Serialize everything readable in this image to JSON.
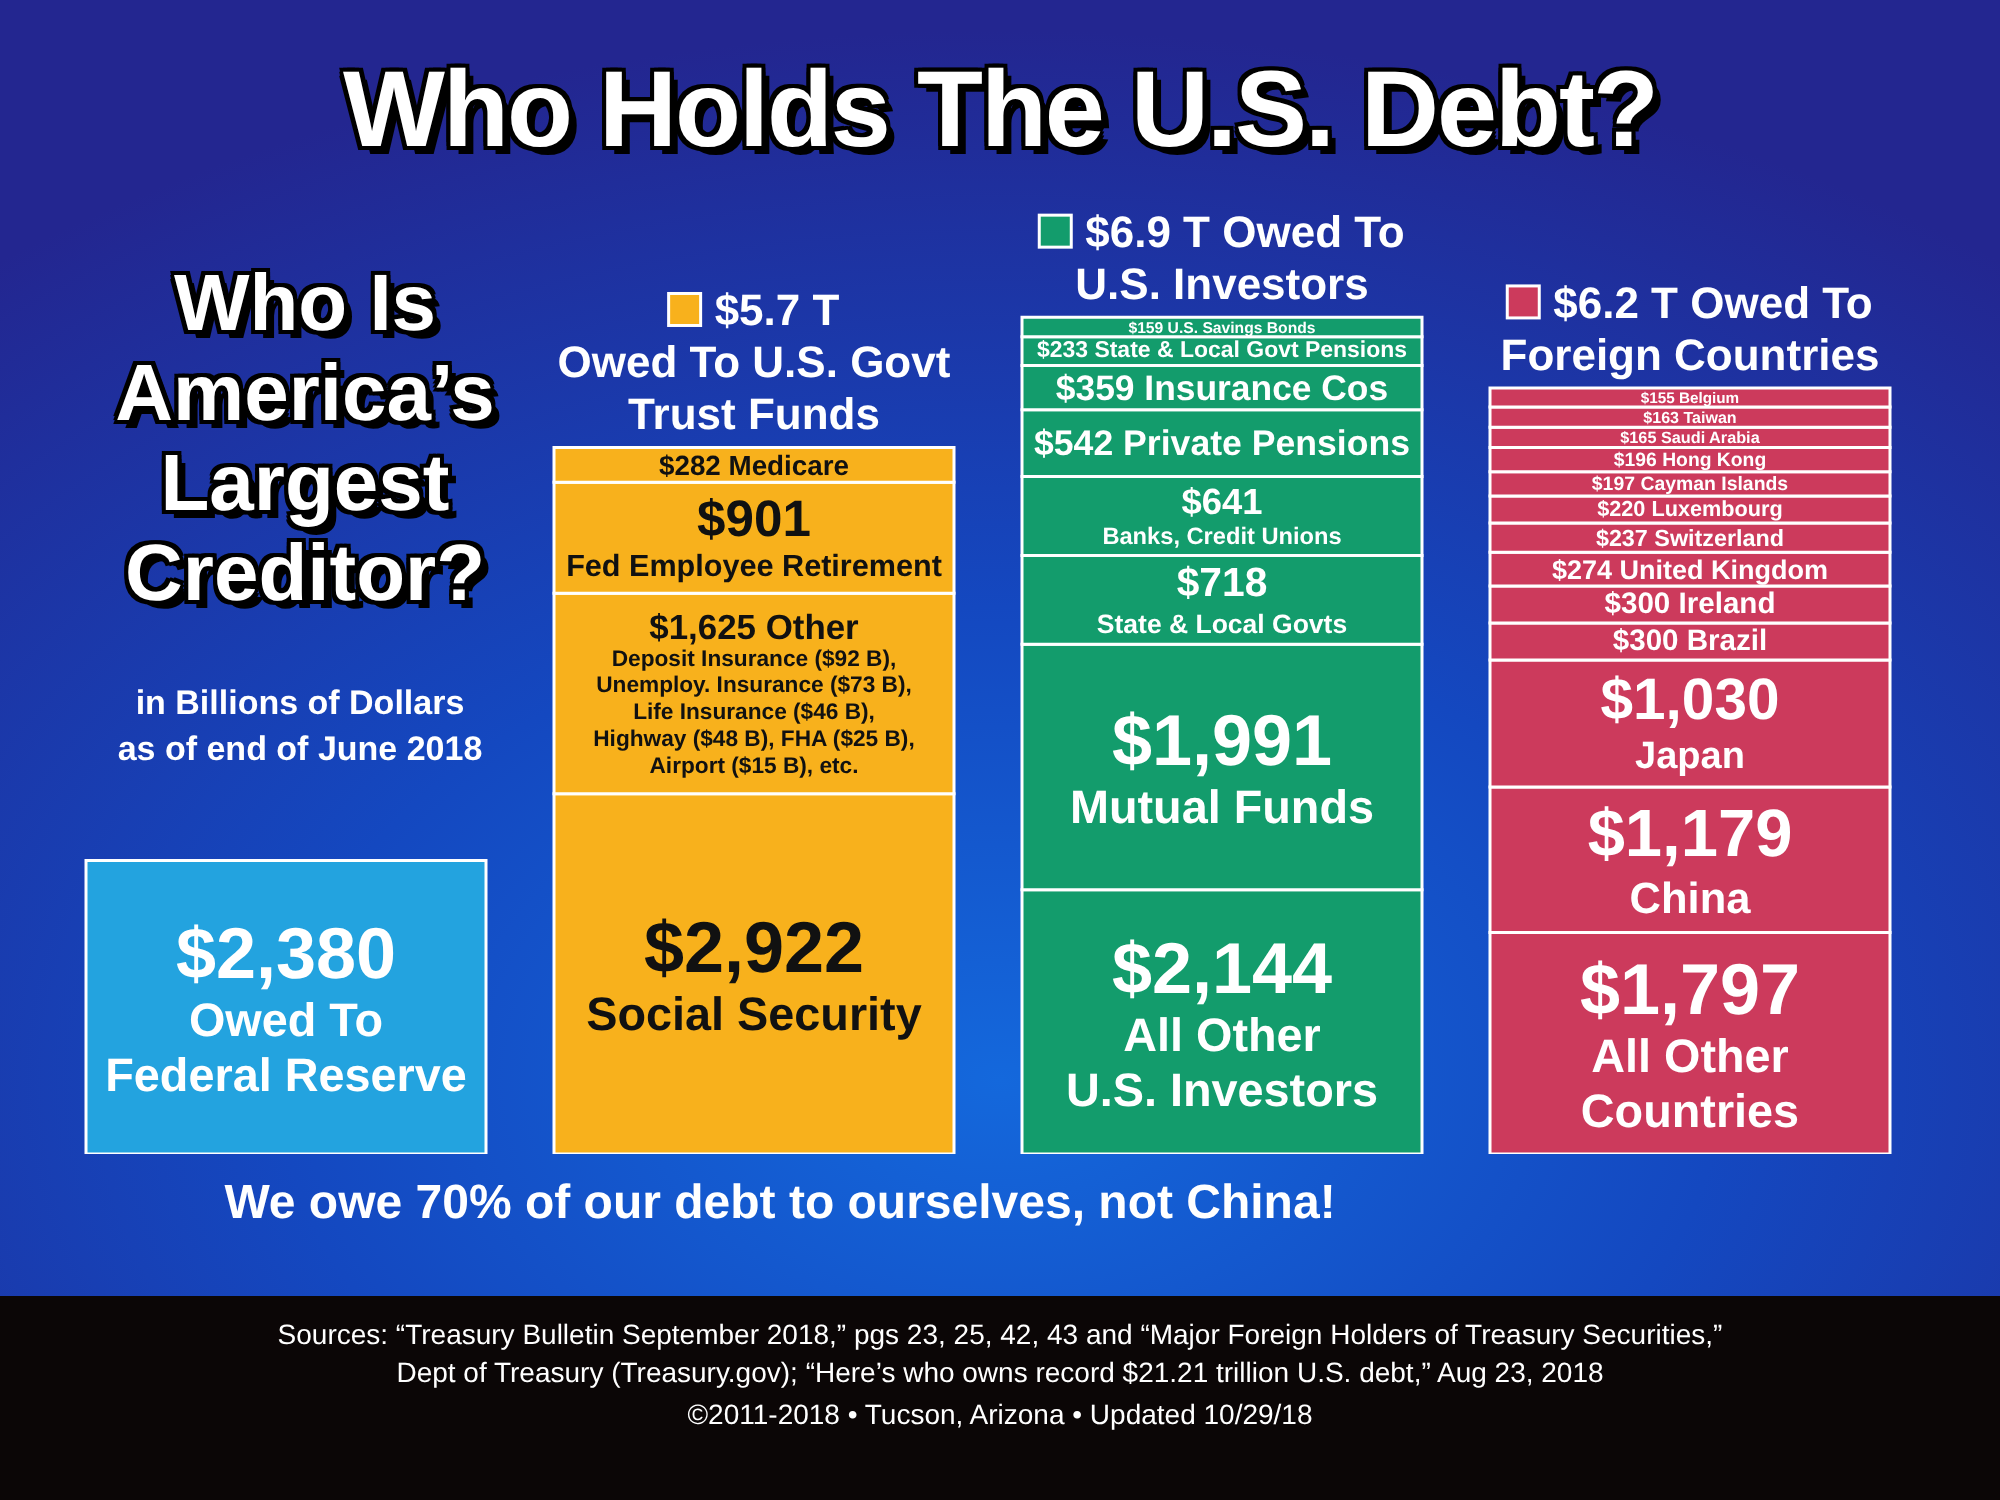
{
  "chart_data": {
    "type": "bar",
    "stacked": true,
    "title": "Who Holds The U.S. Debt?",
    "subtitle": "Who Is\nAmerica’s\nLargest\nCreditor?",
    "categories": [
      null,
      "$5.7 T\nOwed To U.S. Govt\nTrust Funds",
      "$6.9 T Owed To\nU.S. Investors",
      "$6.2 T Owed To\nForeign Countries"
    ],
    "series": [
      {
        "colors": [
          "#23a3df",
          "#f8b11c",
          "#139c6c",
          "#cc3a5c"
        ],
        "values": [
          2380,
          2922,
          2144,
          1797
        ],
        "value_labels": [
          "$2,380\nOwed To\nFederal Reserve",
          "$2,922\nSocial Security",
          "$2,144\nAll Other\nU.S. Investors",
          "$1,797\nAll Other\nCountries"
        ]
      },
      {
        "colors": [
          "#23a3df",
          "#f8b11c",
          "#139c6c",
          "#cc3a5c"
        ],
        "values": [
          null,
          1625,
          1991,
          1179
        ],
        "value_labels": [
          null,
          "$1,625 Other\nDeposit Insurance ($92 B),\nUnemploy. Insurance ($73 B),\nLife Insurance ($46 B),\nHighway ($48 B), FHA ($25 B),\nAirport ($15 B), etc.",
          "$1,991\nMutual Funds",
          "$1,179\nChina"
        ]
      },
      {
        "colors": [
          "#23a3df",
          "#f8b11c",
          "#139c6c",
          "#cc3a5c"
        ],
        "values": [
          null,
          901,
          718,
          1030
        ],
        "value_labels": [
          null,
          "$901\nFed Employee Retirement",
          "$718\nState & Local Govts",
          "$1,030\nJapan"
        ]
      },
      {
        "colors": [
          "#23a3df",
          "#f8b11c",
          "#139c6c",
          "#cc3a5c"
        ],
        "values": [
          null,
          282,
          641,
          300
        ],
        "value_labels": [
          null,
          "$282 Medicare",
          "$641\nBanks, Credit Unions",
          "$300 Brazil"
        ]
      },
      {
        "colors": [
          "#23a3df",
          "#f8b11c",
          "#139c6c",
          "#cc3a5c"
        ],
        "values": [
          null,
          null,
          542,
          300
        ],
        "value_labels": [
          null,
          null,
          "$542 Private Pensions",
          "$300 Ireland"
        ]
      },
      {
        "colors": [
          "#23a3df",
          "#f8b11c",
          "#139c6c",
          "#cc3a5c"
        ],
        "values": [
          null,
          null,
          359,
          274
        ],
        "value_labels": [
          null,
          null,
          "$359 Insurance Cos",
          "$274 United Kingdom"
        ]
      },
      {
        "colors": [
          "#23a3df",
          "#f8b11c",
          "#139c6c",
          "#cc3a5c"
        ],
        "values": [
          null,
          null,
          233,
          237
        ],
        "value_labels": [
          null,
          null,
          "$233 State & Local Govt Pensions",
          "$237 Switzerland"
        ]
      },
      {
        "colors": [
          "#23a3df",
          "#f8b11c",
          "#139c6c",
          "#cc3a5c"
        ],
        "values": [
          null,
          null,
          159,
          220
        ],
        "value_labels": [
          null,
          null,
          "$159 U.S. Savings Bonds",
          "$220 Luxembourg"
        ]
      },
      {
        "colors": [
          "#23a3df",
          "#f8b11c",
          "#139c6c",
          "#cc3a5c"
        ],
        "values": [
          null,
          null,
          null,
          197
        ],
        "value_labels": [
          null,
          null,
          null,
          "$197 Cayman Islands"
        ]
      },
      {
        "colors": [
          "#23a3df",
          "#f8b11c",
          "#139c6c",
          "#cc3a5c"
        ],
        "values": [
          null,
          null,
          null,
          196
        ],
        "value_labels": [
          null,
          null,
          null,
          "$196 Hong Kong"
        ]
      },
      {
        "colors": [
          "#23a3df",
          "#f8b11c",
          "#139c6c",
          "#cc3a5c"
        ],
        "values": [
          null,
          null,
          null,
          165
        ],
        "value_labels": [
          null,
          null,
          null,
          "$165 Saudi Arabia"
        ]
      },
      {
        "colors": [
          "#23a3df",
          "#f8b11c",
          "#139c6c",
          "#cc3a5c"
        ],
        "values": [
          null,
          null,
          null,
          163
        ],
        "value_labels": [
          null,
          null,
          null,
          "$163 Taiwan"
        ]
      },
      {
        "colors": [
          "#23a3df",
          "#f8b11c",
          "#139c6c",
          "#cc3a5c"
        ],
        "values": [
          null,
          null,
          null,
          155
        ],
        "value_labels": [
          null,
          null,
          null,
          "$155 Belgium"
        ]
      }
    ],
    "annotations": [
      "in Billions of Dollars\nas of end of June 2018",
      "We owe 70% of our debt to ourselves, not China!",
      "Sources: “Treasury Bulletin September 2018,” pgs 23, 25, 42, 43 and “Major Foreign Holders of Treasury Securities,”\nDept of Treasury (Treasury.gov); “Here’s who owns record $21.21 trillion U.S. debt,” Aug 23, 2018",
      "©2011-2018 • Tucson, Arizona • Updated 10/29/18"
    ]
  }
}
